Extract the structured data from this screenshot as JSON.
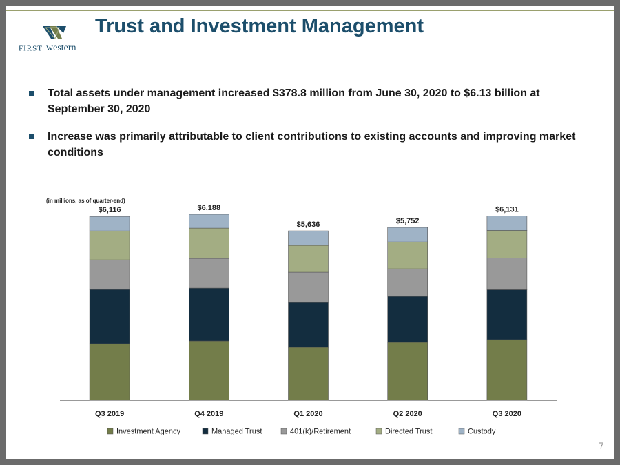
{
  "header": {
    "title": "Trust and Investment Management",
    "logo_first": "FIRST",
    "logo_second": "western"
  },
  "bullets": [
    "Total assets under management increased $378.8 million from June 30, 2020 to $6.13 billion at September 30, 2020",
    "Increase was primarily attributable to client contributions to existing accounts and improving market conditions"
  ],
  "chart_data": {
    "type": "stacked_bar",
    "subtitle": "(in millions, as of quarter-end)",
    "categories": [
      "Q3 2019",
      "Q4 2019",
      "Q1 2020",
      "Q2 2020",
      "Q3 2020"
    ],
    "series": [
      {
        "name": "Investment Agency",
        "color": "#737d4a",
        "values": [
          1878,
          1970,
          1764,
          1924,
          2016
        ]
      },
      {
        "name": "Managed Trust",
        "color": "#132d3f",
        "values": [
          1809,
          1764,
          1489,
          1535,
          1664
        ]
      },
      {
        "name": "401(k)/Retirement",
        "color": "#999999",
        "values": [
          985,
          985,
          1008,
          916,
          1054
        ]
      },
      {
        "name": "Directed Trust",
        "color": "#a3ad83",
        "values": [
          962,
          1008,
          893,
          893,
          916
        ]
      },
      {
        "name": "Custody",
        "color": "#9fb3c6",
        "values": [
          482,
          461,
          482,
          484,
          481
        ]
      }
    ],
    "totals": {
      "values": [
        6116,
        6188,
        5636,
        5752,
        6131
      ],
      "value_labels": [
        "$6,116",
        "$6,188",
        "$5,636",
        "$5,752",
        "$6,131"
      ]
    },
    "legend": "bottom"
  },
  "page_number": "7"
}
